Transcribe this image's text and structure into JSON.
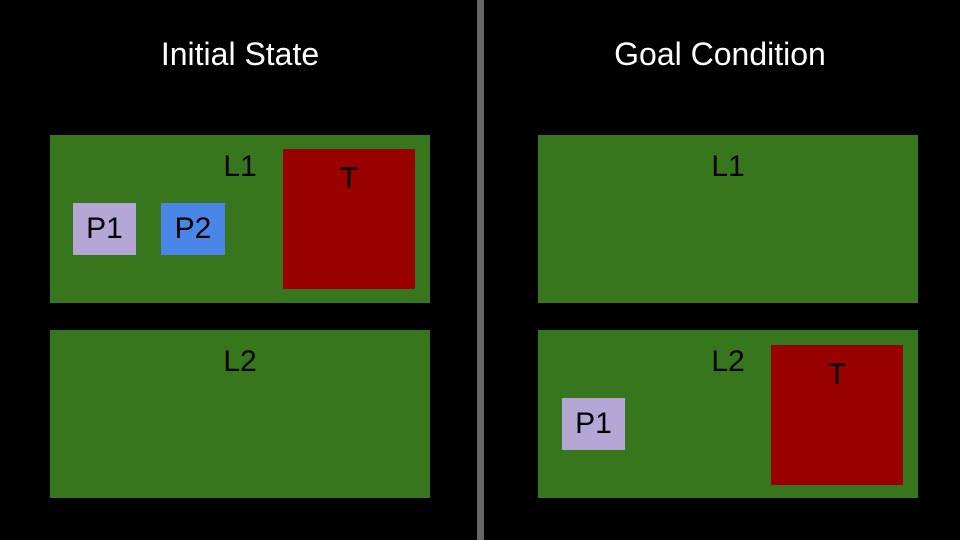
{
  "panels": {
    "initial": {
      "title": "Initial State",
      "locations": {
        "l1": {
          "label": "L1",
          "truck": "T",
          "packages": [
            "P1",
            "P2"
          ]
        },
        "l2": {
          "label": "L2"
        }
      }
    },
    "goal": {
      "title": "Goal Condition",
      "locations": {
        "l1": {
          "label": "L1"
        },
        "l2": {
          "label": "L2",
          "truck": "T",
          "packages": [
            "P1"
          ]
        }
      }
    }
  },
  "colors": {
    "background": "#000000",
    "divider": "#666666",
    "location": "#38761d",
    "truck": "#990000",
    "package_p1": "#b4a7d6",
    "package_p2": "#4a86e8"
  }
}
